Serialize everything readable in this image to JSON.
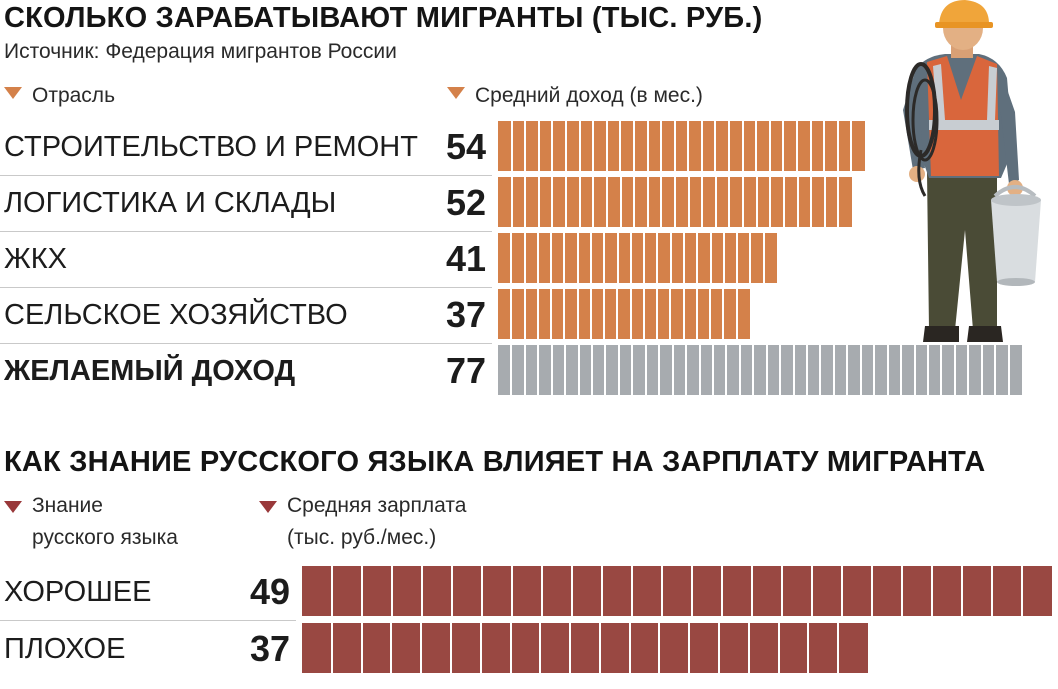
{
  "chart_data": [
    {
      "type": "bar",
      "orientation": "horizontal",
      "title": "СКОЛЬКО ЗАРАБАТЫВАЮТ МИГРАНТЫ (ТЫС. РУБ.)",
      "subtitle": "Источник: Федерация мигрантов России",
      "category_header": "Отрасль",
      "value_header": "Средний доход (в мес.)",
      "categories": [
        "СТРОИТЕЛЬСТВО И РЕМОНТ",
        "ЛОГИСТИКА И СКЛАДЫ",
        "ЖКХ",
        "СЕЛЬСКОЕ ХОЗЯЙСТВО",
        "ЖЕЛАЕМЫЙ ДОХОД"
      ],
      "values": [
        54,
        52,
        41,
        37,
        77
      ],
      "value_labels": [
        "54",
        "52",
        "41",
        "37",
        "77"
      ],
      "bar_colors": [
        "#d4814a",
        "#d4814a",
        "#d4814a",
        "#d4814a",
        "#a7abaf"
      ],
      "highlight_index": 4,
      "xlim": [
        0,
        77
      ],
      "grid": false,
      "legend": "none"
    },
    {
      "type": "bar",
      "orientation": "horizontal",
      "title": "КАК ЗНАНИЕ РУССКОГО ЯЗЫКА ВЛИЯЕТ НА ЗАРПЛАТУ МИГРАНТА",
      "category_header": [
        "Знание",
        "русского языка"
      ],
      "value_header": [
        "Средняя зарплата",
        "(тыс. руб./мес.)"
      ],
      "categories": [
        "ХОРОШЕЕ",
        "ПЛОХОЕ"
      ],
      "values": [
        49,
        37
      ],
      "value_labels": [
        "49",
        "37"
      ],
      "bar_colors": [
        "#994842",
        "#994842"
      ],
      "xlim": [
        0,
        49
      ],
      "grid": false,
      "legend": "none"
    }
  ],
  "colors": {
    "header_triangle_1": "#d4814a",
    "header_triangle_2": "#99383a",
    "brick_seam": "#ffffff",
    "separator": "#c9c9c9"
  },
  "illustration": "construction-worker-icon"
}
